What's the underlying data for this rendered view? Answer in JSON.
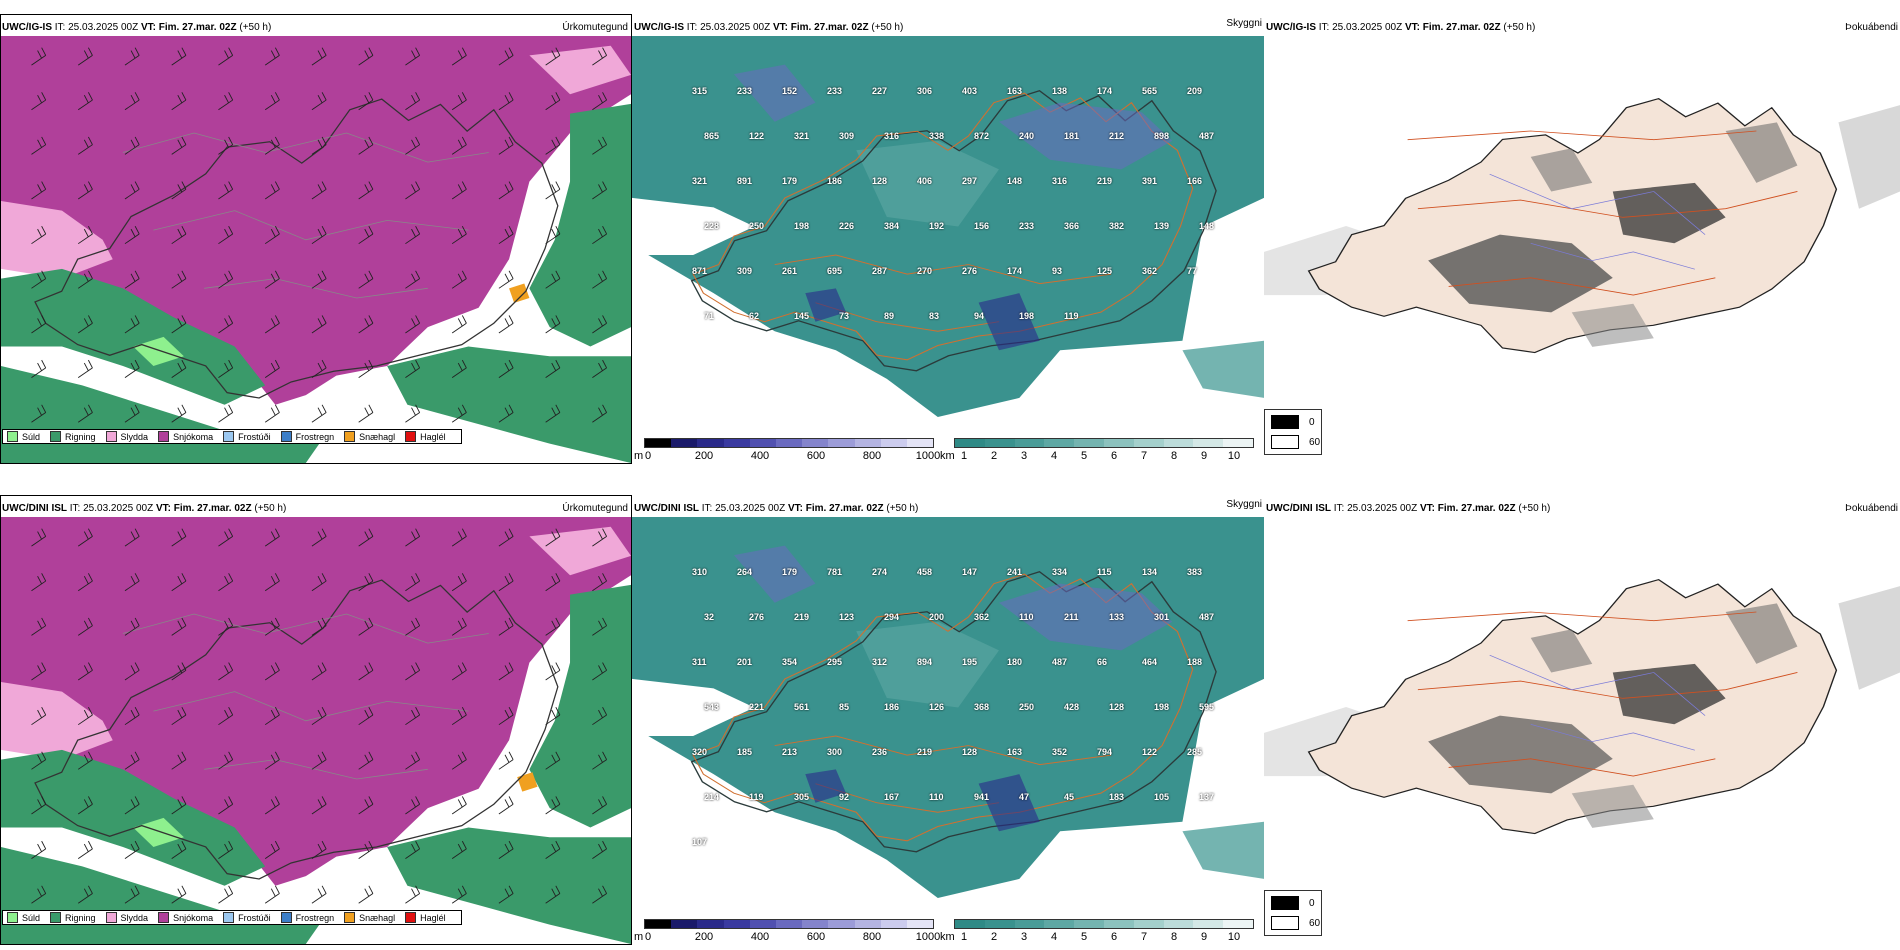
{
  "rows": [
    {
      "model": "UWC/IG-IS",
      "it_label": "IT:",
      "it_value": "25.03.2025 00Z",
      "vt_label": "VT:",
      "vt_value": "Fim. 27.mar. 02Z",
      "lead": "(+50 h)",
      "precip_title": "Úrkomutegund",
      "vis_title": "Skyggni",
      "fog_title": "Þokuábendi",
      "vis_labels": [
        "315",
        "233",
        "152",
        "233",
        "227",
        "306",
        "403",
        "163",
        "138",
        "174",
        "565",
        "209",
        "865",
        "122",
        "321",
        "309",
        "316",
        "338",
        "872",
        "240",
        "181",
        "212",
        "898",
        "487",
        "321",
        "891",
        "179",
        "186",
        "128",
        "406",
        "297",
        "148",
        "316",
        "219",
        "391",
        "166",
        "228",
        "250",
        "198",
        "226",
        "384",
        "192",
        "156",
        "233",
        "366",
        "382",
        "139",
        "148",
        "871",
        "309",
        "261",
        "695",
        "287",
        "270",
        "276",
        "174",
        "93",
        "125",
        "362",
        "77",
        "71",
        "62",
        "145",
        "73",
        "89",
        "83",
        "94",
        "198",
        "119"
      ]
    },
    {
      "model": "UWC/DINI ISL",
      "it_label": "IT:",
      "it_value": "25.03.2025 00Z",
      "vt_label": "VT:",
      "vt_value": "Fim. 27.mar. 02Z",
      "lead": "(+50 h)",
      "precip_title": "Úrkomutegund",
      "vis_title": "Skyggni",
      "fog_title": "Þokuábendi",
      "vis_labels": [
        "310",
        "264",
        "179",
        "781",
        "274",
        "458",
        "147",
        "241",
        "334",
        "115",
        "134",
        "383",
        "32",
        "276",
        "219",
        "123",
        "294",
        "200",
        "362",
        "110",
        "211",
        "133",
        "301",
        "487",
        "311",
        "201",
        "354",
        "295",
        "312",
        "894",
        "195",
        "180",
        "487",
        "66",
        "464",
        "188",
        "543",
        "221",
        "561",
        "85",
        "186",
        "126",
        "368",
        "250",
        "428",
        "128",
        "198",
        "595",
        "320",
        "185",
        "213",
        "300",
        "236",
        "219",
        "128",
        "163",
        "352",
        "794",
        "122",
        "285",
        "214",
        "119",
        "305",
        "92",
        "167",
        "110",
        "941",
        "47",
        "45",
        "183",
        "105",
        "137",
        "107"
      ]
    }
  ],
  "precip_legend": [
    {
      "label": "Súld",
      "color": "#8ef08e"
    },
    {
      "label": "Rigning",
      "color": "#3a9a6a"
    },
    {
      "label": "Slydda",
      "color": "#f0a8d8"
    },
    {
      "label": "Snjókoma",
      "color": "#b0409a"
    },
    {
      "label": "Frostúði",
      "color": "#9cc8f0"
    },
    {
      "label": "Frostregn",
      "color": "#3c7ec8"
    },
    {
      "label": "Snæhagl",
      "color": "#f0a020"
    },
    {
      "label": "Haglél",
      "color": "#e01010"
    }
  ],
  "height_bar": {
    "unit": "m",
    "ticks": [
      "0",
      "200",
      "400",
      "600",
      "800",
      "1000"
    ],
    "colors": [
      "#000000",
      "#1a1a6a",
      "#2a2a8a",
      "#3a3aa0",
      "#5050b0",
      "#6a6ac0",
      "#8484cc",
      "#9c9cd8",
      "#b4b4e2",
      "#ccccee",
      "#e4e4f6"
    ]
  },
  "vis_bar": {
    "unit": "km",
    "ticks": [
      "1",
      "2",
      "3",
      "4",
      "5",
      "6",
      "7",
      "8",
      "9",
      "10"
    ],
    "colors": [
      "#2f8a86",
      "#3a928e",
      "#4a9c98",
      "#5ea8a4",
      "#74b4b0",
      "#8cc2be",
      "#a4d0cc",
      "#bcdcda",
      "#d4e8e6",
      "#ecf4f4"
    ]
  },
  "fog_legend": {
    "values": [
      "0",
      "60"
    ],
    "colors": [
      "#000000",
      "#ffffff"
    ]
  }
}
